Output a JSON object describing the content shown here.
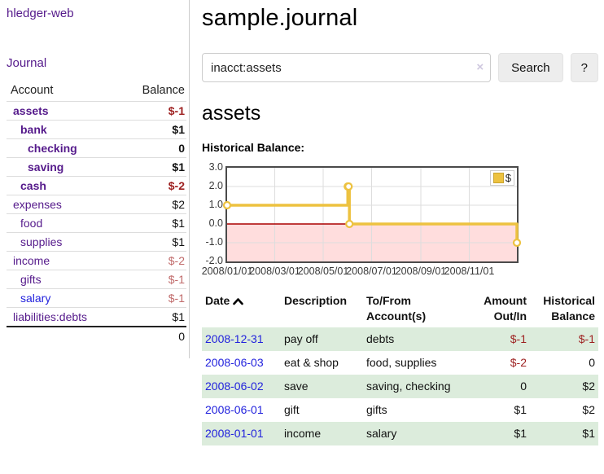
{
  "colors": {
    "link_purple": "#551a8b",
    "link_blue": "#2222dd",
    "negative_strong": "#9d1f1f",
    "negative_soft": "#c06a6a",
    "row_stripe": "#dcecdc",
    "series_gold": "#edc240",
    "chart_negative_bg": "#ffdddd",
    "chart_zero_line": "#aa0000"
  },
  "app": {
    "brand": "hledger-web",
    "nav_journal": "Journal"
  },
  "sidebar": {
    "columns": [
      "Account",
      "Balance"
    ],
    "accounts": [
      {
        "name": "assets",
        "indent": 0,
        "bold": true,
        "link_state": "visited",
        "balance": "$-1",
        "balance_class": "negative-strong"
      },
      {
        "name": "bank",
        "indent": 1,
        "bold": true,
        "link_state": "visited",
        "balance": "$1",
        "balance_class": "none"
      },
      {
        "name": "checking",
        "indent": 2,
        "bold": true,
        "link_state": "visited",
        "balance": "0",
        "balance_class": "none"
      },
      {
        "name": "saving",
        "indent": 2,
        "bold": true,
        "link_state": "visited",
        "balance": "$1",
        "balance_class": "none"
      },
      {
        "name": "cash",
        "indent": 1,
        "bold": true,
        "link_state": "visited",
        "balance": "$-2",
        "balance_class": "negative-strong"
      },
      {
        "name": "expenses",
        "indent": 0,
        "bold": false,
        "link_state": "visited",
        "balance": "$2",
        "balance_class": "none"
      },
      {
        "name": "food",
        "indent": 1,
        "bold": false,
        "link_state": "visited",
        "balance": "$1",
        "balance_class": "none"
      },
      {
        "name": "supplies",
        "indent": 1,
        "bold": false,
        "link_state": "visited",
        "balance": "$1",
        "balance_class": "none"
      },
      {
        "name": "income",
        "indent": 0,
        "bold": false,
        "link_state": "visited",
        "balance": "$-2",
        "balance_class": "negative-soft"
      },
      {
        "name": "gifts",
        "indent": 1,
        "bold": false,
        "link_state": "visited",
        "balance": "$-1",
        "balance_class": "negative-soft"
      },
      {
        "name": "salary",
        "indent": 1,
        "bold": false,
        "link_state": "unvisited",
        "balance": "$-1",
        "balance_class": "negative-soft"
      },
      {
        "name": "liabilities:debts",
        "indent": 0,
        "bold": false,
        "link_state": "visited",
        "balance": "$1",
        "balance_class": "none"
      }
    ],
    "total": "0"
  },
  "main": {
    "title": "sample.journal",
    "search": {
      "value": "inacct:assets",
      "clear_icon": "×",
      "button_label": "Search",
      "help_label": "?"
    },
    "account_heading": "assets",
    "chart_label": "Historical Balance:"
  },
  "chart_data": {
    "type": "line",
    "style": "step-after",
    "title": "Historical Balance",
    "x_range": [
      "2008-01-01",
      "2008-12-31"
    ],
    "ylim": [
      -2,
      3
    ],
    "y_ticks": [
      "3.0",
      "2.0",
      "1.0",
      "0.0",
      "-1.0",
      "-2.0"
    ],
    "x_ticks": [
      "2008/01/01",
      "2008/03/01",
      "2008/05/01",
      "2008/07/01",
      "2008/09/01",
      "2008/11/01"
    ],
    "grid": true,
    "legend": {
      "label": "$",
      "position": "top-right"
    },
    "series": [
      {
        "name": "$",
        "x": [
          "2008-01-01",
          "2008-06-01",
          "2008-06-02",
          "2008-06-03",
          "2008-12-31"
        ],
        "values": [
          1,
          2,
          2,
          0,
          -1
        ]
      }
    ]
  },
  "register": {
    "headers": [
      "Date",
      "Description",
      "To/From Account(s)",
      "Amount Out/In",
      "Historical Balance"
    ],
    "sort_icon": "chevron-up",
    "rows": [
      {
        "date": "2008-12-31",
        "description": "pay off",
        "accounts": "debts",
        "amount": "$-1",
        "amount_negative": true,
        "balance": "$-1",
        "balance_negative": true
      },
      {
        "date": "2008-06-03",
        "description": "eat & shop",
        "accounts": "food, supplies",
        "amount": "$-2",
        "amount_negative": true,
        "balance": "0",
        "balance_negative": false
      },
      {
        "date": "2008-06-02",
        "description": "save",
        "accounts": "saving, checking",
        "amount": "0",
        "amount_negative": false,
        "balance": "$2",
        "balance_negative": false
      },
      {
        "date": "2008-06-01",
        "description": "gift",
        "accounts": "gifts",
        "amount": "$1",
        "amount_negative": false,
        "balance": "$2",
        "balance_negative": false
      },
      {
        "date": "2008-01-01",
        "description": "income",
        "accounts": "salary",
        "amount": "$1",
        "amount_negative": false,
        "balance": "$1",
        "balance_negative": false
      }
    ]
  }
}
